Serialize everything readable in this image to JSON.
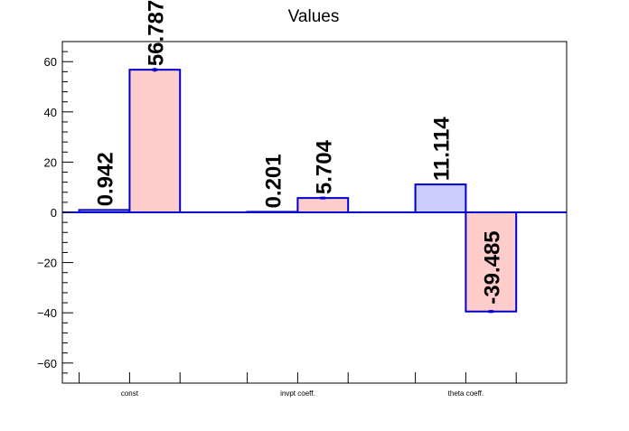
{
  "chart_data": {
    "type": "bar",
    "title": "Values",
    "xlabel": "",
    "ylabel": "",
    "categories": [
      "const",
      "invpt coeff.",
      "theta coeff."
    ],
    "ylim": [
      -68,
      68
    ],
    "y_ticks": [
      -60,
      -40,
      -20,
      0,
      20,
      40,
      60
    ],
    "y_tick_labels": [
      "−60",
      "−40",
      "−20",
      "0",
      "20",
      "40",
      "60"
    ],
    "grid": false,
    "legend": "none",
    "series": [
      {
        "values": [
          0.942,
          0.201,
          11.114
        ],
        "labels": [
          "0.942",
          "0.201",
          "11.114"
        ],
        "fill": "#ccccff",
        "stroke": "#0000cc"
      },
      {
        "values": [
          56.787,
          5.704,
          -39.485
        ],
        "labels": [
          "56.787",
          "5.704",
          "-39.485"
        ],
        "error": [
          0.8,
          0.2,
          0.6
        ],
        "fill": "#ffcccc",
        "stroke": "#0000cc"
      }
    ]
  }
}
